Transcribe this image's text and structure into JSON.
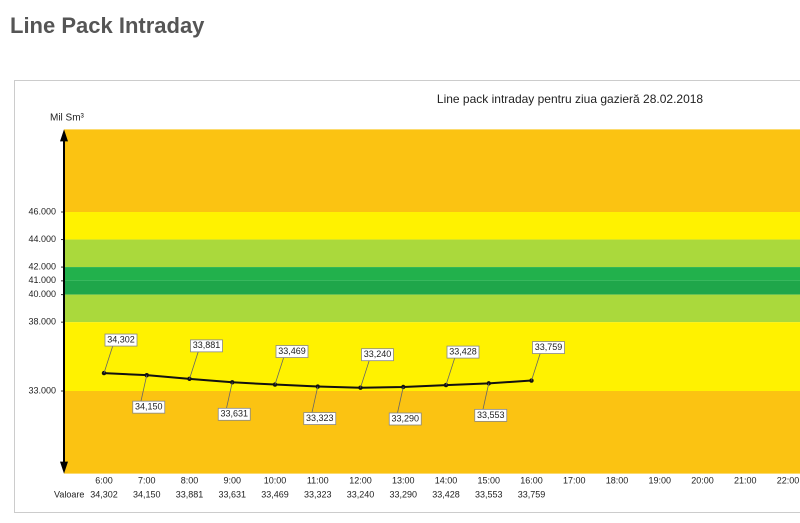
{
  "header": {
    "title": "Line Pack Intraday"
  },
  "chart_data": {
    "type": "line",
    "title": "Line pack intraday pentru ziua gazieră  28.02.2018",
    "y_label": "Mil Sm³",
    "row_label": "Valoare",
    "categories": [
      "6:00",
      "7:00",
      "8:00",
      "9:00",
      "10:00",
      "11:00",
      "12:00",
      "13:00",
      "14:00",
      "15:00",
      "16:00",
      "17:00",
      "18:00",
      "19:00",
      "20:00",
      "21:00",
      "22:00"
    ],
    "series": [
      {
        "name": "Line pack",
        "color": "#111111",
        "values": [
          34.302,
          34.15,
          33.881,
          33.631,
          33.469,
          33.323,
          33.24,
          33.29,
          33.428,
          33.553,
          33.759,
          null,
          null,
          null,
          null,
          null,
          null
        ],
        "value_labels": [
          "34,302",
          "34,150",
          "33,881",
          "33,631",
          "33,469",
          "33,323",
          "33,240",
          "33,290",
          "33,428",
          "33,553",
          "33,759",
          null,
          null,
          null,
          null,
          null,
          null
        ]
      }
    ],
    "ylim": [
      27,
      52
    ],
    "yticks": [
      {
        "value": 33,
        "label": "33.000"
      },
      {
        "value": 38,
        "label": "38.000"
      },
      {
        "value": 40,
        "label": "40.000"
      },
      {
        "value": 41,
        "label": "41.000"
      },
      {
        "value": 42,
        "label": "42.000"
      },
      {
        "value": 44,
        "label": "44.000"
      },
      {
        "value": 46,
        "label": "46.000"
      }
    ],
    "bands": [
      {
        "from": 46,
        "to": 52,
        "color": "#fbc312"
      },
      {
        "from": 44,
        "to": 46,
        "color": "#fff200"
      },
      {
        "from": 42,
        "to": 44,
        "color": "#aad93c"
      },
      {
        "from": 41,
        "to": 42,
        "color": "#22b14c"
      },
      {
        "from": 40,
        "to": 41,
        "color": "#1fa64a"
      },
      {
        "from": 38,
        "to": 40,
        "color": "#aad93c"
      },
      {
        "from": 33,
        "to": 38,
        "color": "#fff200"
      },
      {
        "from": 27,
        "to": 33,
        "color": "#fbc312"
      }
    ]
  }
}
